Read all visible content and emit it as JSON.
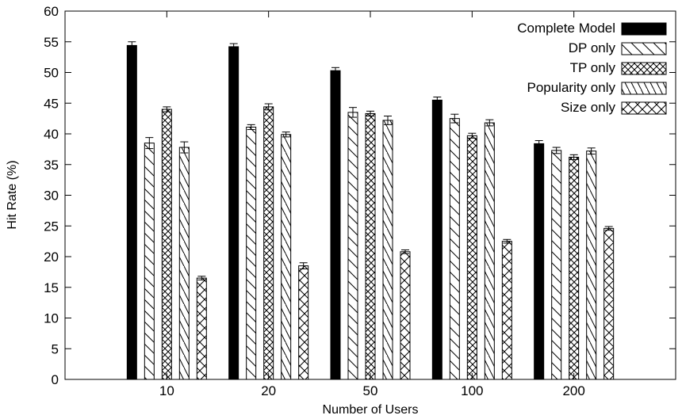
{
  "chart_data": {
    "type": "bar",
    "title": "",
    "xlabel": "Number of Users",
    "ylabel": "Hit Rate (%)",
    "ylim": [
      0,
      60
    ],
    "yticks": [
      0,
      5,
      10,
      15,
      20,
      25,
      30,
      35,
      40,
      45,
      50,
      55,
      60
    ],
    "categories": [
      "10",
      "20",
      "50",
      "100",
      "200"
    ],
    "legend_position": "top-right",
    "grid": false,
    "error_bars": true,
    "series": [
      {
        "name": "Complete Model",
        "pattern": "solid",
        "values": [
          54.4,
          54.2,
          50.3,
          45.5,
          38.4
        ],
        "errors": [
          0.6,
          0.5,
          0.5,
          0.5,
          0.5
        ]
      },
      {
        "name": "DP only",
        "pattern": "back-diagonal",
        "values": [
          38.5,
          41.1,
          43.5,
          42.5,
          37.3
        ],
        "errors": [
          0.9,
          0.4,
          0.8,
          0.7,
          0.5
        ]
      },
      {
        "name": "TP only",
        "pattern": "crosshatch",
        "values": [
          44.0,
          44.4,
          43.3,
          39.7,
          36.2
        ],
        "errors": [
          0.4,
          0.5,
          0.4,
          0.4,
          0.4
        ]
      },
      {
        "name": "Popularity only",
        "pattern": "back-diagonal-wide",
        "values": [
          37.8,
          39.9,
          42.2,
          41.8,
          37.2
        ],
        "errors": [
          0.9,
          0.4,
          0.7,
          0.5,
          0.5
        ]
      },
      {
        "name": "Size only",
        "pattern": "crosshatch-wide",
        "values": [
          16.5,
          18.5,
          20.8,
          22.5,
          24.6
        ],
        "errors": [
          0.3,
          0.5,
          0.3,
          0.3,
          0.3
        ]
      }
    ]
  }
}
